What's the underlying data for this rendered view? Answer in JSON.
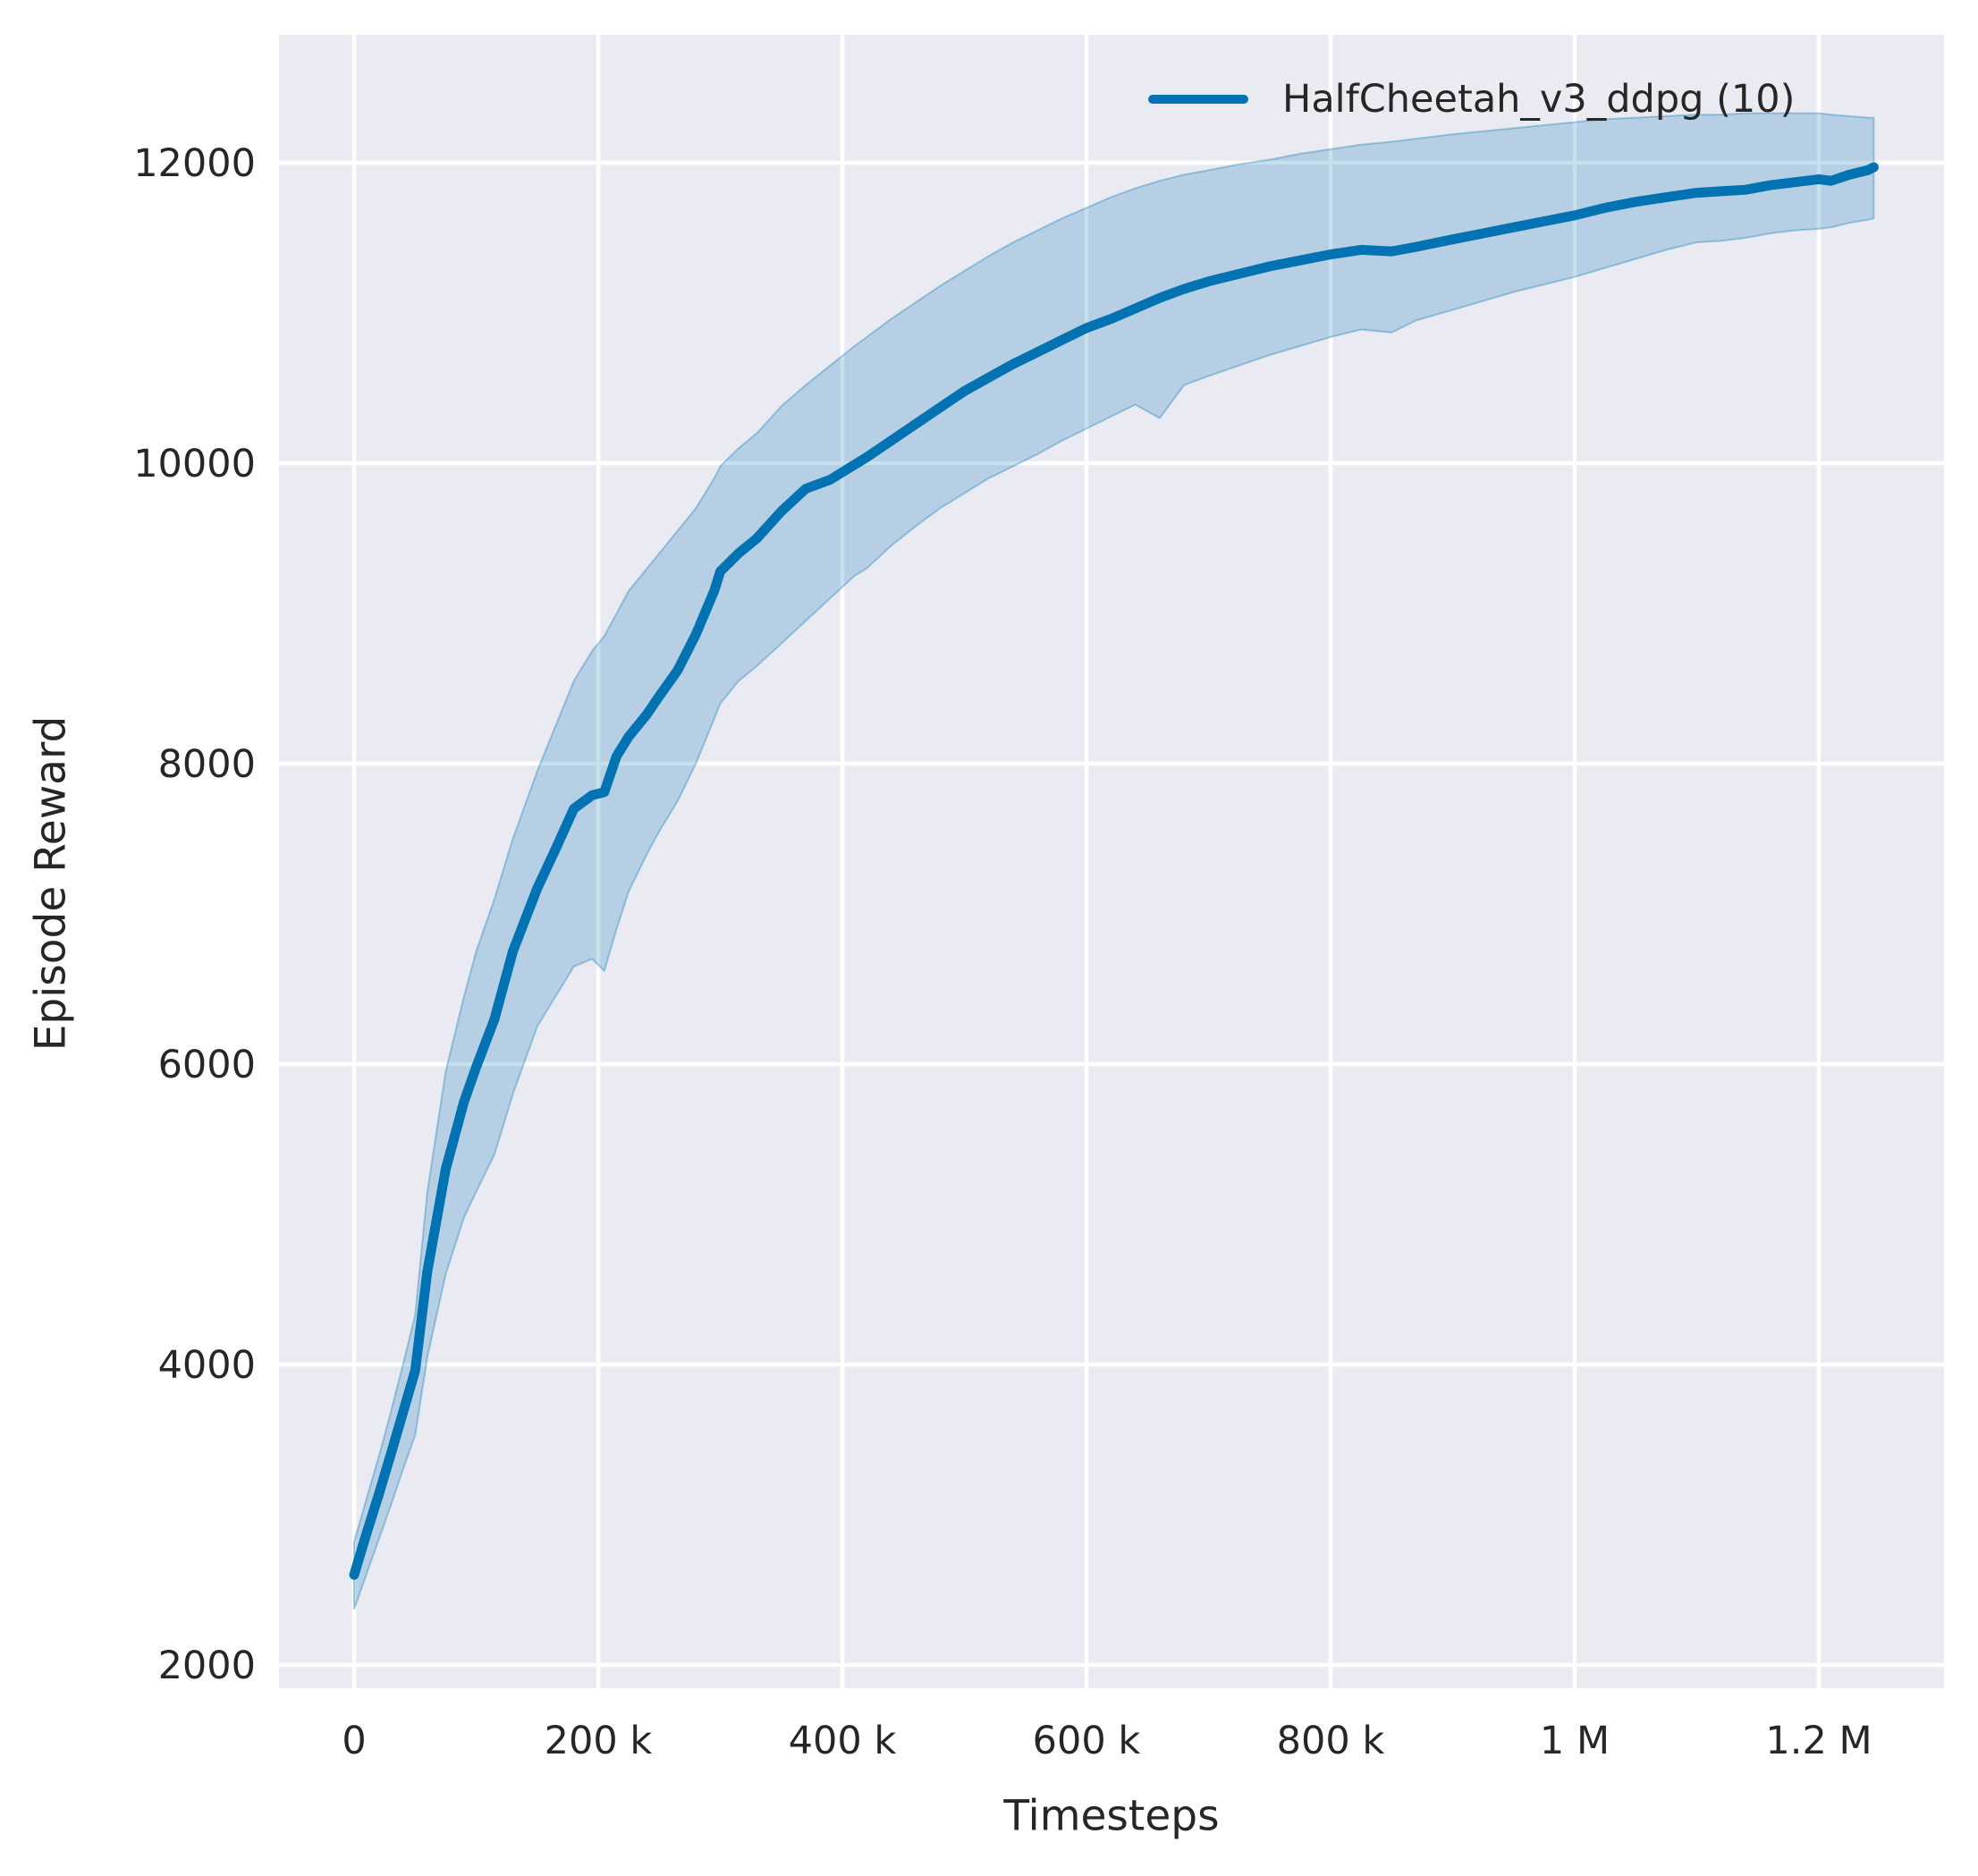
{
  "colors": {
    "line": "#0173b2",
    "band_fill": "rgba(1,115,178,0.22)",
    "band_edge": "rgba(1,115,178,0.32)",
    "plot_bg": "#eaeaf2",
    "grid": "#ffffff",
    "text": "#262626"
  },
  "chart_data": {
    "type": "line",
    "title": "",
    "xlabel": "Timesteps",
    "ylabel": "Episode Reward",
    "grid": "on",
    "legend_position": "upper right",
    "xlim": [
      -62000,
      1310000
    ],
    "ylim": [
      1800,
      12900
    ],
    "x_ticks": [
      {
        "t": 0,
        "label": "0"
      },
      {
        "t": 200000,
        "label": "200 k"
      },
      {
        "t": 400000,
        "label": "400 k"
      },
      {
        "t": 600000,
        "label": "600 k"
      },
      {
        "t": 800000,
        "label": "800 k"
      },
      {
        "t": 1000000,
        "label": "1 M"
      },
      {
        "t": 1200000,
        "label": "1.2 M"
      }
    ],
    "y_ticks": [
      {
        "v": 2000,
        "label": "2000"
      },
      {
        "v": 4000,
        "label": "4000"
      },
      {
        "v": 6000,
        "label": "6000"
      },
      {
        "v": 8000,
        "label": "8000"
      },
      {
        "v": 10000,
        "label": "10000"
      },
      {
        "v": 12000,
        "label": "12000"
      }
    ],
    "legend": {
      "entries": [
        {
          "label": "HalfCheetah_v3_ddpg (10)",
          "color": "#0173b2"
        }
      ]
    },
    "series": [
      {
        "name": "HalfCheetah_v3_ddpg (10)",
        "x_timesteps": [
          0,
          10000,
          20000,
          30000,
          40000,
          50000,
          60000,
          75000,
          90000,
          100000,
          115000,
          130000,
          150000,
          165000,
          180000,
          195000,
          205000,
          215000,
          225000,
          240000,
          250000,
          265000,
          280000,
          295000,
          300000,
          315000,
          330000,
          350000,
          370000,
          390000,
          410000,
          420000,
          440000,
          460000,
          480000,
          500000,
          520000,
          540000,
          560000,
          580000,
          600000,
          620000,
          640000,
          660000,
          680000,
          700000,
          725000,
          750000,
          775000,
          800000,
          825000,
          850000,
          870000,
          900000,
          925000,
          950000,
          975000,
          1000000,
          1025000,
          1050000,
          1075000,
          1100000,
          1120000,
          1140000,
          1160000,
          1180000,
          1200000,
          1210000,
          1225000,
          1240000,
          1245000
        ],
        "mean": [
          2600,
          2870,
          3130,
          3400,
          3680,
          3960,
          4620,
          5300,
          5750,
          5980,
          6300,
          6750,
          7170,
          7430,
          7700,
          7790,
          7810,
          8050,
          8180,
          8330,
          8450,
          8620,
          8860,
          9150,
          9280,
          9400,
          9500,
          9680,
          9830,
          9890,
          9990,
          10040,
          10150,
          10260,
          10370,
          10480,
          10570,
          10660,
          10740,
          10820,
          10900,
          10960,
          11030,
          11100,
          11160,
          11210,
          11260,
          11310,
          11350,
          11390,
          11420,
          11410,
          11440,
          11490,
          11530,
          11570,
          11610,
          11650,
          11700,
          11740,
          11770,
          11800,
          11810,
          11820,
          11850,
          11870,
          11890,
          11880,
          11920,
          11950,
          11970
        ],
        "band_lower": [
          2370,
          2600,
          2830,
          3060,
          3300,
          3530,
          4050,
          4600,
          4980,
          5150,
          5400,
          5800,
          6250,
          6450,
          6650,
          6700,
          6620,
          6900,
          7150,
          7400,
          7550,
          7750,
          8000,
          8300,
          8400,
          8550,
          8650,
          8800,
          8950,
          9100,
          9250,
          9300,
          9450,
          9580,
          9700,
          9800,
          9900,
          9980,
          10060,
          10150,
          10230,
          10310,
          10390,
          10300,
          10520,
          10580,
          10650,
          10720,
          10780,
          10840,
          10890,
          10870,
          10950,
          11020,
          11080,
          11140,
          11190,
          11240,
          11300,
          11360,
          11420,
          11470,
          11480,
          11500,
          11530,
          11550,
          11560,
          11570,
          11600,
          11620,
          11630
        ],
        "band_upper": [
          2820,
          3100,
          3380,
          3680,
          4000,
          4330,
          5150,
          5950,
          6450,
          6750,
          7100,
          7500,
          7950,
          8250,
          8550,
          8750,
          8850,
          9000,
          9150,
          9300,
          9400,
          9550,
          9700,
          9900,
          9980,
          10100,
          10200,
          10380,
          10520,
          10650,
          10780,
          10840,
          10960,
          11070,
          11180,
          11280,
          11380,
          11470,
          11550,
          11630,
          11700,
          11770,
          11830,
          11880,
          11920,
          11950,
          11990,
          12020,
          12060,
          12090,
          12120,
          12140,
          12160,
          12190,
          12210,
          12230,
          12250,
          12270,
          12290,
          12300,
          12310,
          12320,
          12320,
          12330,
          12330,
          12330,
          12330,
          12320,
          12310,
          12300,
          12300
        ]
      }
    ]
  }
}
